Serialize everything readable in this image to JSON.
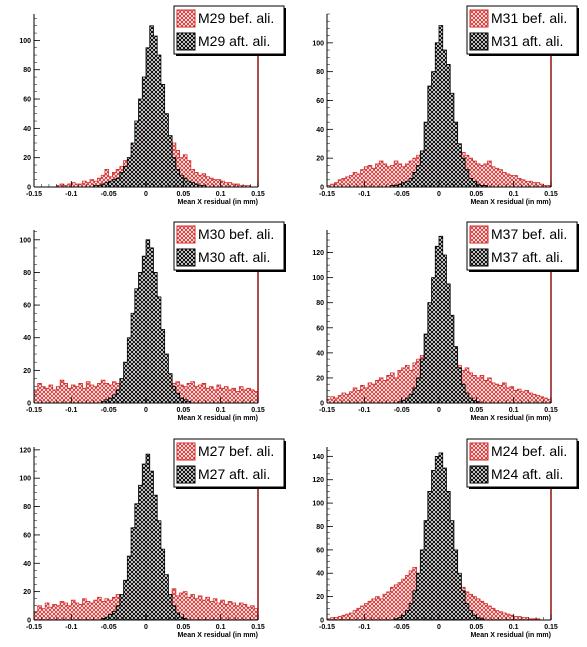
{
  "patterns": {
    "before_color": "#e03030",
    "after_color": "#111111"
  },
  "chart_data": [
    {
      "type": "histogram",
      "xlabel": "Mean X residual (in mm)",
      "xlim": [
        -0.15,
        0.15
      ],
      "ylim": [
        0,
        118
      ],
      "yticks": [
        0,
        20,
        40,
        60,
        80,
        100
      ],
      "xticks": [
        "-0.15",
        "-0.1",
        "-0.05",
        "0",
        "0.05",
        "0.1",
        "0.15"
      ],
      "bins": 60,
      "series": [
        {
          "name": "M29 bef. ali.",
          "color": "#e03030",
          "values": [
            0,
            0,
            0,
            0,
            0,
            0,
            1,
            2,
            1,
            2,
            3,
            2,
            2,
            4,
            3,
            5,
            4,
            6,
            8,
            12,
            7,
            10,
            12,
            14,
            18,
            20,
            22,
            25,
            30,
            40,
            52,
            55,
            45,
            40,
            38,
            33,
            28,
            30,
            25,
            20,
            22,
            18,
            12,
            10,
            8,
            9,
            7,
            6,
            5,
            5,
            4,
            3,
            3,
            2,
            2,
            1,
            1,
            1,
            0,
            0
          ]
        },
        {
          "name": "M29 aft. ali.",
          "color": "#111111",
          "values": [
            0,
            0,
            0,
            0,
            0,
            0,
            0,
            0,
            0,
            0,
            0,
            0,
            0,
            0,
            0,
            0,
            1,
            1,
            2,
            3,
            4,
            5,
            6,
            10,
            14,
            20,
            30,
            45,
            60,
            75,
            95,
            110,
            103,
            90,
            70,
            50,
            35,
            20,
            12,
            8,
            6,
            4,
            3,
            2,
            1,
            1,
            0,
            0,
            0,
            0,
            0,
            0,
            0,
            0,
            0,
            0,
            0,
            0,
            0,
            0
          ]
        }
      ]
    },
    {
      "type": "histogram",
      "xlabel": "Mean X residual (in mm)",
      "xlim": [
        -0.15,
        0.15
      ],
      "ylim": [
        0,
        120
      ],
      "yticks": [
        0,
        20,
        40,
        60,
        80,
        100
      ],
      "xticks": [
        "-0.15",
        "-0.1",
        "-0.05",
        "0",
        "0.05",
        "0.1",
        "0.15"
      ],
      "bins": 60,
      "series": [
        {
          "name": "M31 bef. ali.",
          "color": "#e03030",
          "values": [
            1,
            2,
            3,
            5,
            6,
            7,
            8,
            10,
            9,
            12,
            14,
            15,
            13,
            16,
            18,
            16,
            14,
            15,
            18,
            16,
            14,
            16,
            18,
            20,
            22,
            24,
            25,
            28,
            30,
            32,
            34,
            36,
            35,
            32,
            28,
            26,
            24,
            22,
            20,
            18,
            16,
            15,
            16,
            18,
            14,
            13,
            12,
            10,
            9,
            8,
            8,
            6,
            5,
            4,
            4,
            3,
            3,
            2,
            1,
            1
          ]
        },
        {
          "name": "M31 aft. ali.",
          "color": "#111111",
          "values": [
            0,
            0,
            0,
            0,
            0,
            0,
            0,
            0,
            0,
            0,
            0,
            0,
            0,
            0,
            0,
            0,
            0,
            1,
            1,
            2,
            3,
            4,
            6,
            10,
            15,
            25,
            45,
            70,
            80,
            100,
            112,
            95,
            85,
            65,
            45,
            30,
            20,
            12,
            6,
            4,
            2,
            1,
            1,
            0,
            0,
            0,
            0,
            0,
            0,
            0,
            0,
            0,
            0,
            0,
            0,
            0,
            0,
            0,
            0,
            0
          ]
        }
      ]
    },
    {
      "type": "histogram",
      "xlabel": "Mean X residual (in mm)",
      "xlim": [
        -0.15,
        0.15
      ],
      "ylim": [
        0,
        106
      ],
      "yticks": [
        0,
        20,
        40,
        60,
        80,
        100
      ],
      "xticks": [
        "-0.15",
        "-0.1",
        "-0.05",
        "0",
        "0.05",
        "0.1",
        "0.15"
      ],
      "bins": 60,
      "series": [
        {
          "name": "M30 bef. ali.",
          "color": "#e03030",
          "values": [
            8,
            12,
            10,
            9,
            11,
            8,
            10,
            14,
            12,
            9,
            11,
            10,
            12,
            9,
            13,
            11,
            10,
            12,
            14,
            12,
            11,
            13,
            12,
            14,
            15,
            14,
            16,
            14,
            15,
            16,
            17,
            15,
            14,
            13,
            16,
            15,
            14,
            12,
            13,
            11,
            10,
            12,
            13,
            10,
            11,
            12,
            9,
            10,
            8,
            11,
            9,
            10,
            8,
            9,
            7,
            10,
            8,
            9,
            8,
            7
          ]
        },
        {
          "name": "M30 aft. ali.",
          "color": "#111111",
          "values": [
            0,
            0,
            0,
            0,
            0,
            0,
            0,
            0,
            0,
            0,
            0,
            0,
            0,
            0,
            0,
            0,
            0,
            0,
            1,
            2,
            3,
            5,
            8,
            15,
            25,
            40,
            55,
            70,
            80,
            90,
            100,
            95,
            80,
            65,
            45,
            30,
            18,
            10,
            6,
            3,
            2,
            1,
            0,
            0,
            0,
            0,
            0,
            0,
            0,
            0,
            0,
            0,
            0,
            0,
            0,
            0,
            0,
            0,
            0,
            0
          ]
        }
      ]
    },
    {
      "type": "histogram",
      "xlabel": "Mean X residual (in mm)",
      "xlim": [
        -0.15,
        0.15
      ],
      "ylim": [
        0,
        138
      ],
      "yticks": [
        0,
        20,
        40,
        60,
        80,
        100,
        120
      ],
      "xticks": [
        "-0.15",
        "-0.1",
        "-0.05",
        "0",
        "0.05",
        "0.1",
        "0.15"
      ],
      "bins": 60,
      "series": [
        {
          "name": "M37 bef. ali.",
          "color": "#e03030",
          "values": [
            3,
            5,
            4,
            6,
            8,
            7,
            9,
            12,
            10,
            14,
            12,
            16,
            15,
            18,
            20,
            18,
            22,
            24,
            20,
            26,
            28,
            30,
            26,
            32,
            35,
            38,
            34,
            36,
            38,
            35,
            32,
            34,
            30,
            28,
            32,
            30,
            26,
            28,
            24,
            22,
            20,
            22,
            18,
            20,
            16,
            15,
            14,
            16,
            12,
            13,
            10,
            11,
            9,
            10,
            8,
            7,
            6,
            5,
            4,
            3
          ]
        },
        {
          "name": "M37 aft. ali.",
          "color": "#111111",
          "values": [
            0,
            0,
            0,
            0,
            0,
            0,
            0,
            0,
            0,
            0,
            0,
            0,
            0,
            0,
            0,
            0,
            0,
            0,
            0,
            1,
            2,
            4,
            7,
            12,
            20,
            35,
            55,
            80,
            100,
            125,
            133,
            118,
            95,
            70,
            45,
            28,
            15,
            8,
            4,
            2,
            1,
            0,
            0,
            0,
            0,
            0,
            0,
            0,
            0,
            0,
            0,
            0,
            0,
            0,
            0,
            0,
            0,
            0,
            0,
            0
          ]
        }
      ]
    },
    {
      "type": "histogram",
      "xlabel": "Mean X residual (in mm)",
      "xlim": [
        -0.15,
        0.15
      ],
      "ylim": [
        0,
        122
      ],
      "yticks": [
        0,
        20,
        40,
        60,
        80,
        100,
        120
      ],
      "xticks": [
        "-0.15",
        "-0.1",
        "-0.05",
        "0",
        "0.05",
        "0.1",
        "0.15"
      ],
      "bins": 60,
      "series": [
        {
          "name": "M27 bef. ali.",
          "color": "#e03030",
          "values": [
            6,
            10,
            8,
            12,
            9,
            11,
            10,
            13,
            12,
            10,
            14,
            12,
            11,
            15,
            13,
            12,
            14,
            16,
            13,
            15,
            14,
            16,
            18,
            15,
            17,
            20,
            18,
            22,
            20,
            24,
            22,
            20,
            21,
            23,
            19,
            20,
            18,
            22,
            17,
            19,
            20,
            16,
            18,
            15,
            17,
            14,
            16,
            13,
            15,
            12,
            14,
            11,
            13,
            12,
            10,
            12,
            11,
            9,
            10,
            8
          ]
        },
        {
          "name": "M27 aft. ali.",
          "color": "#111111",
          "values": [
            0,
            0,
            0,
            0,
            0,
            0,
            0,
            0,
            0,
            0,
            0,
            0,
            0,
            0,
            0,
            0,
            0,
            0,
            1,
            2,
            4,
            6,
            10,
            18,
            28,
            45,
            65,
            82,
            95,
            110,
            117,
            105,
            88,
            70,
            50,
            32,
            18,
            10,
            5,
            2,
            1,
            0,
            0,
            0,
            0,
            0,
            0,
            0,
            0,
            0,
            0,
            0,
            0,
            0,
            0,
            0,
            0,
            0,
            0,
            0
          ]
        }
      ]
    },
    {
      "type": "histogram",
      "xlabel": "Mean X residual (in mm)",
      "xlim": [
        -0.15,
        0.15
      ],
      "ylim": [
        0,
        148
      ],
      "yticks": [
        0,
        20,
        40,
        60,
        80,
        100,
        120,
        140
      ],
      "xticks": [
        "-0.15",
        "-0.1",
        "-0.05",
        "0",
        "0.05",
        "0.1",
        "0.15"
      ],
      "bins": 60,
      "series": [
        {
          "name": "M24 bef. ali.",
          "color": "#e03030",
          "values": [
            1,
            2,
            2,
            3,
            4,
            5,
            6,
            8,
            10,
            12,
            14,
            16,
            18,
            20,
            18,
            22,
            24,
            28,
            30,
            32,
            35,
            38,
            42,
            45,
            40,
            48,
            50,
            46,
            44,
            42,
            40,
            38,
            36,
            34,
            32,
            30,
            28,
            24,
            22,
            20,
            18,
            16,
            14,
            12,
            10,
            8,
            7,
            6,
            5,
            4,
            3,
            3,
            2,
            2,
            1,
            1,
            1,
            0,
            0,
            0
          ]
        },
        {
          "name": "M24 aft. ali.",
          "color": "#111111",
          "values": [
            0,
            0,
            0,
            0,
            0,
            0,
            0,
            0,
            0,
            0,
            0,
            0,
            0,
            0,
            0,
            0,
            0,
            0,
            1,
            2,
            4,
            8,
            14,
            25,
            40,
            60,
            85,
            110,
            128,
            140,
            143,
            130,
            110,
            85,
            60,
            40,
            25,
            14,
            8,
            4,
            2,
            1,
            0,
            0,
            0,
            0,
            0,
            0,
            0,
            0,
            0,
            0,
            0,
            0,
            0,
            0,
            0,
            0,
            0,
            0
          ]
        }
      ]
    }
  ]
}
